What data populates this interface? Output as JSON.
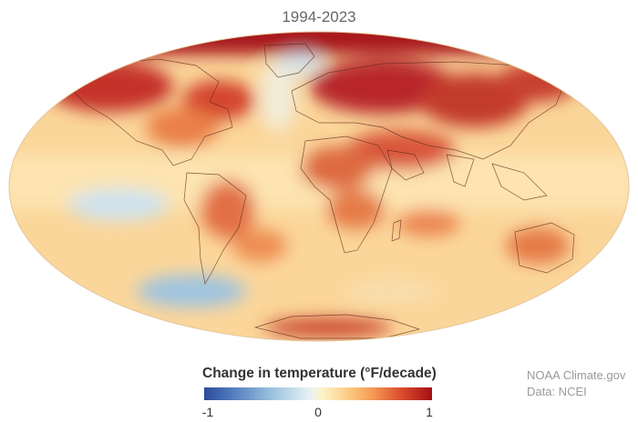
{
  "title": "1994-2023",
  "legend": {
    "title": "Change in temperature (°F/decade)",
    "ticks": [
      "-1",
      "0",
      "1"
    ],
    "min": -1,
    "max": 1,
    "colors": [
      "#2c4a9a",
      "#9cc3de",
      "#fdf3c8",
      "#f59a54",
      "#a50f15"
    ]
  },
  "credits": {
    "source": "NOAA Climate.gov",
    "data": "Data: NCEI"
  },
  "map": {
    "projection": "robinson-like ellipse",
    "warming_regions": [
      {
        "name": "arctic",
        "value": 1.0
      },
      {
        "name": "northern-canada",
        "value": 0.9
      },
      {
        "name": "northern-eurasia",
        "value": 0.9
      },
      {
        "name": "siberia",
        "value": 0.85
      },
      {
        "name": "north-africa",
        "value": 0.6
      },
      {
        "name": "south-america",
        "value": 0.5
      },
      {
        "name": "southern-africa",
        "value": 0.5
      },
      {
        "name": "australia",
        "value": 0.5
      },
      {
        "name": "south-atlantic",
        "value": 0.55
      },
      {
        "name": "antarctic-peninsula",
        "value": 0.8
      }
    ],
    "cooling_regions": [
      {
        "name": "southeast-pacific",
        "value": -0.3
      },
      {
        "name": "southern-ocean-pacific",
        "value": -0.5
      },
      {
        "name": "greenland-north",
        "value": -0.2
      },
      {
        "name": "north-atlantic-south-greenland",
        "value": -0.1
      }
    ]
  }
}
